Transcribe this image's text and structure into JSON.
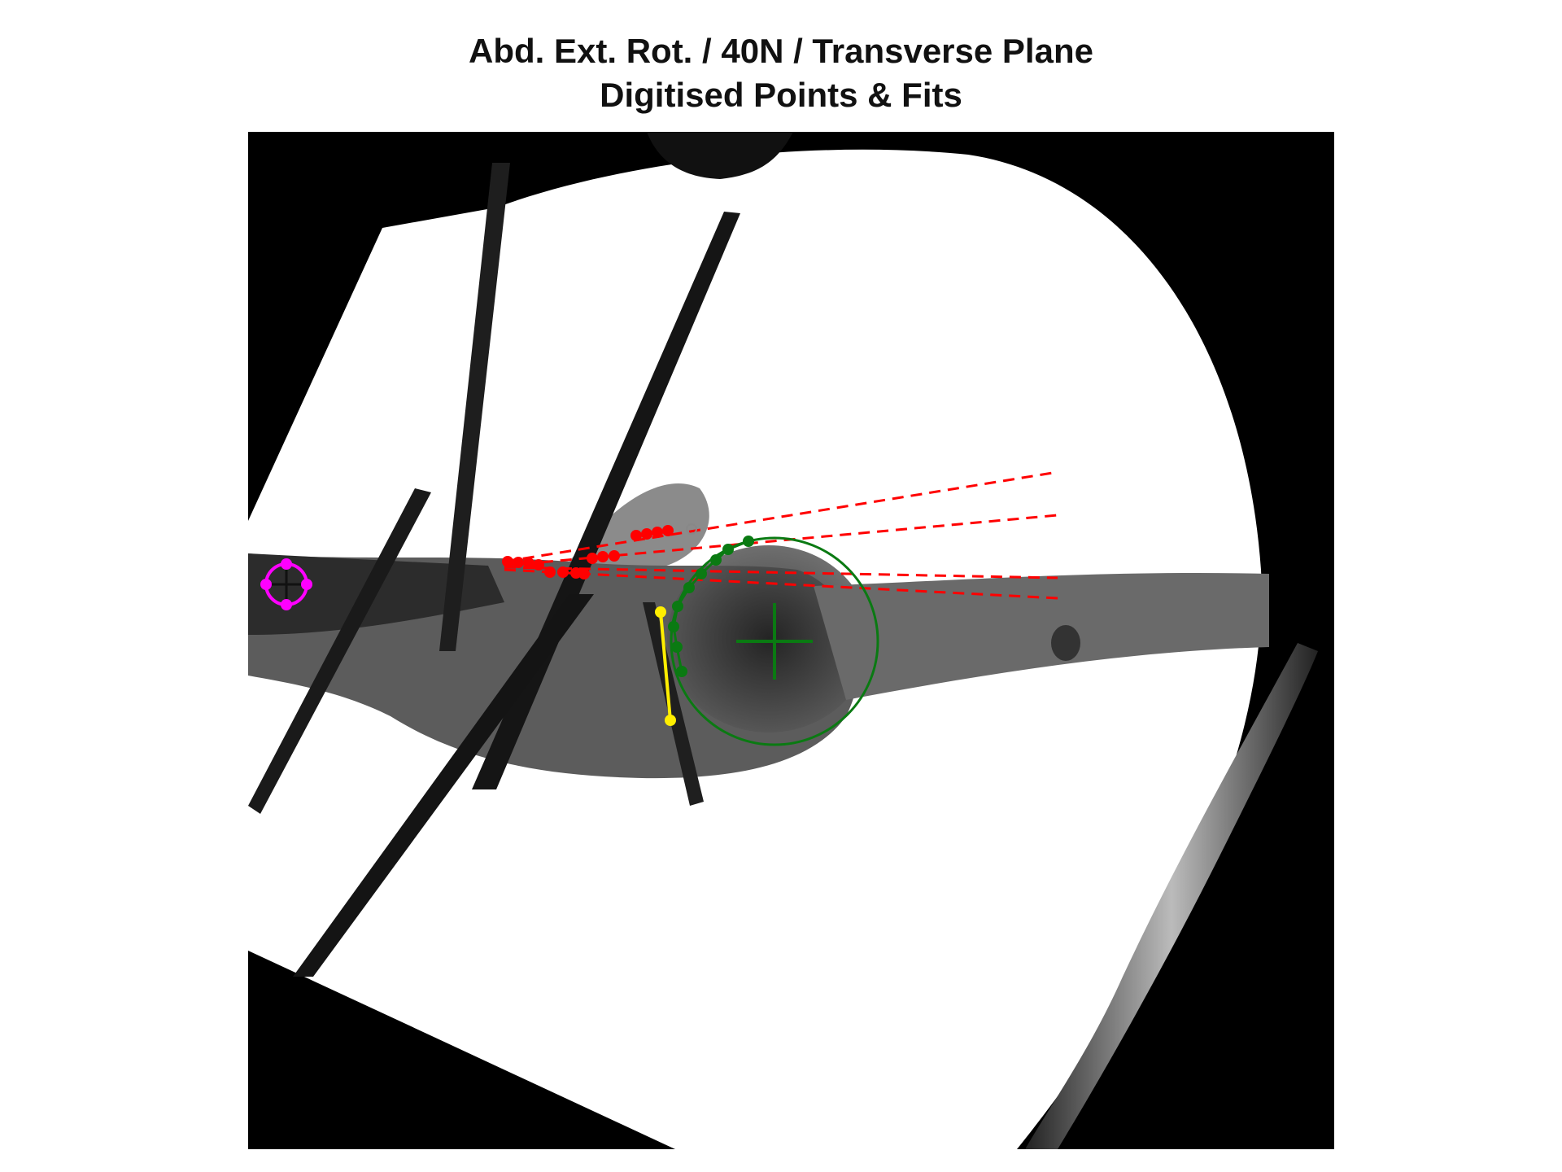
{
  "figure": {
    "title_line1": "Abd. Ext. Rot. / 40N / Transverse Plane",
    "title_line2": "Digitised Points & Fits"
  },
  "colors": {
    "background": "#ffffff",
    "xray_dark": "#000000",
    "xray_light": "#ffffff",
    "red_points": "#ff0000",
    "green_fit": "#0a7a12",
    "yellow_line": "#ffee00",
    "magenta_marker": "#ff00ff"
  },
  "overlays": {
    "red_line_count": 4,
    "red_style": "dashed",
    "green_fit_shape": "circle",
    "yellow_segment": "solid",
    "magenta_marker_shape": "circle-with-cross"
  }
}
